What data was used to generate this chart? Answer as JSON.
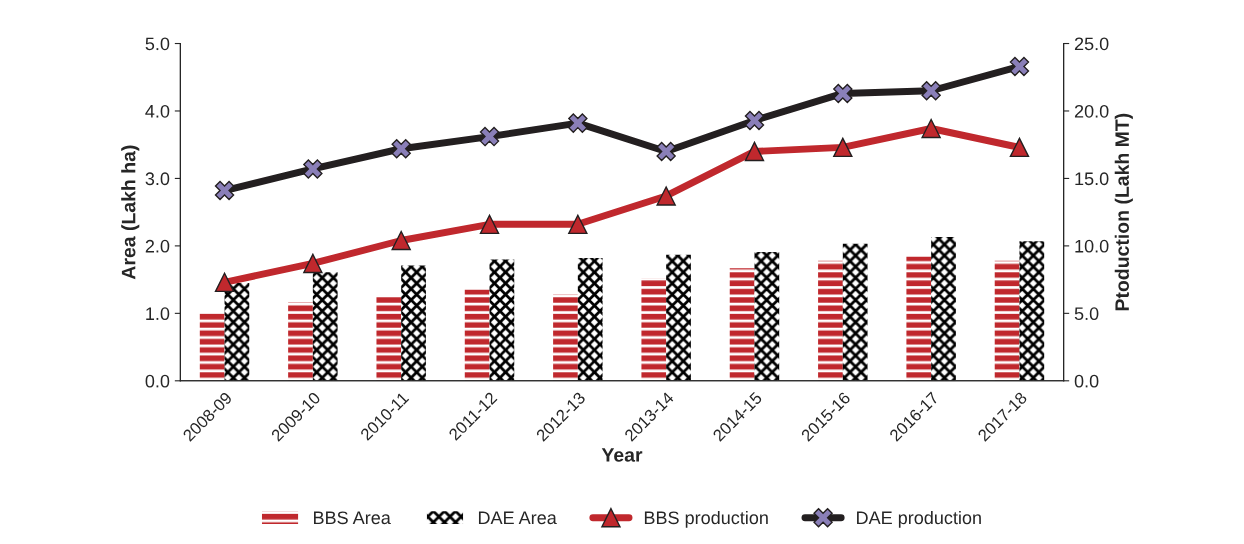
{
  "chart_data": {
    "type": "bar",
    "xlabel": "Year",
    "ylabel": "Area (Lakh ha)",
    "y2label": "Ptoduction (Lakh MT)",
    "categories": [
      "2008-09",
      "2009-10",
      "2010-11",
      "2011-12",
      "2012-13",
      "2013-14",
      "2014-15",
      "2015-16",
      "2016-17",
      "2017-18"
    ],
    "series": [
      {
        "name": "BBS Area",
        "color": "#c0282d",
        "values": [
          1.02,
          1.16,
          1.26,
          1.35,
          1.28,
          1.52,
          1.67,
          1.78,
          1.84,
          1.78
        ]
      },
      {
        "name": "DAE Area",
        "color": "#000000",
        "values": [
          1.45,
          1.61,
          1.71,
          1.8,
          1.82,
          1.87,
          1.91,
          2.03,
          2.13,
          2.07
        ]
      },
      {
        "name": "BBS production",
        "type": "line",
        "axis": "y2",
        "marker": "triangle",
        "color": "#c0282d",
        "values": [
          7.3,
          8.7,
          10.4,
          11.6,
          11.6,
          13.7,
          17.0,
          17.3,
          18.7,
          17.3
        ]
      },
      {
        "name": "DAE production",
        "type": "line",
        "axis": "y2",
        "marker": "cross",
        "color": "#231f20",
        "values": [
          14.1,
          15.7,
          17.2,
          18.1,
          19.1,
          17.0,
          19.3,
          21.3,
          21.5,
          23.3
        ]
      }
    ],
    "ylim": [
      0,
      5
    ],
    "yticks": [
      {
        "value": 0,
        "label": "0.0"
      },
      {
        "value": 1,
        "label": "1.0"
      },
      {
        "value": 2,
        "label": "2.0"
      },
      {
        "value": 3,
        "label": "3.0"
      },
      {
        "value": 4,
        "label": "4.0"
      },
      {
        "value": 5,
        "label": "5.0"
      }
    ],
    "y2lim": [
      0,
      25
    ],
    "y2ticks": [
      {
        "value": 0,
        "label": "0.0"
      },
      {
        "value": 5,
        "label": "5.0"
      },
      {
        "value": 10,
        "label": "10.0"
      },
      {
        "value": 15,
        "label": "15.0"
      },
      {
        "value": 20,
        "label": "20.0"
      },
      {
        "value": 25,
        "label": "25.0"
      }
    ],
    "legend": "bottom",
    "grid": false
  }
}
